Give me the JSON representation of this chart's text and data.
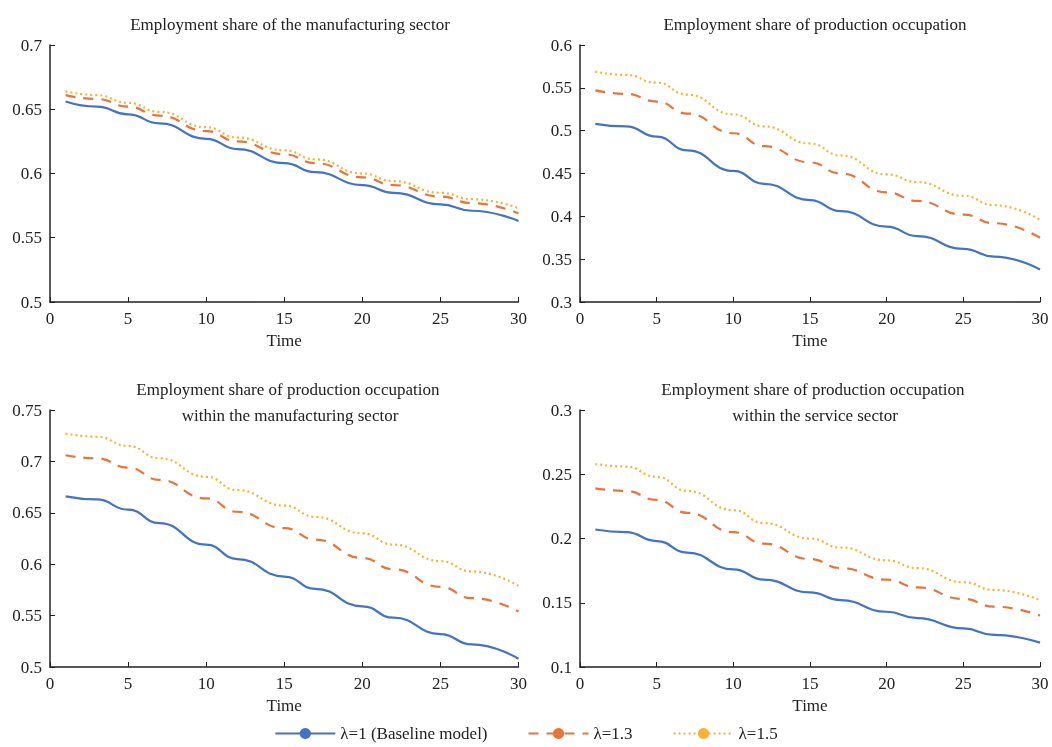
{
  "chart_data": [
    {
      "type": "line",
      "title": "Employment share of the manufacturing sector",
      "xlabel": "Time",
      "x": [
        1,
        3,
        5,
        7,
        10,
        12,
        15,
        17,
        20,
        22,
        25,
        27,
        30
      ],
      "xlim": [
        0,
        30
      ],
      "xticks": [
        0,
        5,
        10,
        15,
        20,
        25,
        30
      ],
      "ylim": [
        0.5,
        0.7
      ],
      "yticks": [
        0.5,
        0.55,
        0.6,
        0.65,
        0.7
      ],
      "grid": false,
      "legend": false,
      "marker": "none",
      "series": [
        {
          "color": "#4472c4",
          "line_style": "solid",
          "values": [
            0.656,
            0.652,
            0.646,
            0.639,
            0.627,
            0.619,
            0.608,
            0.601,
            0.591,
            0.585,
            0.576,
            0.571,
            0.563
          ]
        },
        {
          "color": "#e8743b",
          "line_style": "dashed",
          "values": [
            0.661,
            0.658,
            0.652,
            0.645,
            0.633,
            0.625,
            0.615,
            0.608,
            0.597,
            0.591,
            0.582,
            0.577,
            0.569
          ]
        },
        {
          "color": "#f9b233",
          "line_style": "dotted",
          "values": [
            0.664,
            0.661,
            0.655,
            0.648,
            0.636,
            0.628,
            0.618,
            0.611,
            0.6,
            0.594,
            0.585,
            0.58,
            0.573
          ]
        }
      ]
    },
    {
      "type": "line",
      "title": "Employment share of production occupation",
      "xlabel": "Time",
      "x": [
        1,
        3,
        5,
        7,
        10,
        12,
        15,
        17,
        20,
        22,
        25,
        27,
        30
      ],
      "xlim": [
        0,
        30
      ],
      "xticks": [
        0,
        5,
        10,
        15,
        20,
        25,
        30
      ],
      "ylim": [
        0.3,
        0.6
      ],
      "yticks": [
        0.3,
        0.35,
        0.4,
        0.45,
        0.5,
        0.55,
        0.6
      ],
      "grid": false,
      "legend": false,
      "marker": "none",
      "series": [
        {
          "color": "#4472c4",
          "line_style": "solid",
          "values": [
            0.508,
            0.505,
            0.493,
            0.477,
            0.453,
            0.438,
            0.419,
            0.406,
            0.388,
            0.377,
            0.362,
            0.353,
            0.338
          ]
        },
        {
          "color": "#e8743b",
          "line_style": "dashed",
          "values": [
            0.547,
            0.543,
            0.534,
            0.52,
            0.497,
            0.482,
            0.463,
            0.45,
            0.428,
            0.418,
            0.402,
            0.392,
            0.375
          ]
        },
        {
          "color": "#f9b233",
          "line_style": "dotted",
          "values": [
            0.569,
            0.565,
            0.556,
            0.542,
            0.519,
            0.505,
            0.485,
            0.471,
            0.449,
            0.44,
            0.424,
            0.413,
            0.396
          ]
        }
      ]
    },
    {
      "type": "line",
      "title": "Employment share of production occupation within the manufacturing sector",
      "xlabel": "Time",
      "x": [
        1,
        3,
        5,
        7,
        10,
        12,
        15,
        17,
        20,
        22,
        25,
        27,
        30
      ],
      "xlim": [
        0,
        30
      ],
      "xticks": [
        0,
        5,
        10,
        15,
        20,
        25,
        30
      ],
      "ylim": [
        0.5,
        0.75
      ],
      "yticks": [
        0.5,
        0.55,
        0.6,
        0.65,
        0.7,
        0.75
      ],
      "grid": false,
      "legend": false,
      "marker": "none",
      "series": [
        {
          "color": "#4472c4",
          "line_style": "solid",
          "values": [
            0.666,
            0.663,
            0.653,
            0.64,
            0.619,
            0.605,
            0.588,
            0.576,
            0.559,
            0.548,
            0.532,
            0.522,
            0.508
          ]
        },
        {
          "color": "#e8743b",
          "line_style": "dashed",
          "values": [
            0.706,
            0.703,
            0.694,
            0.682,
            0.664,
            0.651,
            0.635,
            0.624,
            0.606,
            0.595,
            0.578,
            0.567,
            0.554
          ]
        },
        {
          "color": "#f9b233",
          "line_style": "dotted",
          "values": [
            0.727,
            0.724,
            0.715,
            0.703,
            0.685,
            0.672,
            0.657,
            0.646,
            0.63,
            0.619,
            0.603,
            0.593,
            0.579
          ]
        }
      ]
    },
    {
      "type": "line",
      "title": "Employment share of production occupation within the service sector",
      "xlabel": "Time",
      "x": [
        1,
        3,
        5,
        7,
        10,
        12,
        15,
        17,
        20,
        22,
        25,
        27,
        30
      ],
      "xlim": [
        0,
        30
      ],
      "xticks": [
        0,
        5,
        10,
        15,
        20,
        25,
        30
      ],
      "ylim": [
        0.1,
        0.3
      ],
      "yticks": [
        0.1,
        0.15,
        0.2,
        0.25,
        0.3
      ],
      "grid": false,
      "legend": "bottom",
      "marker": "none",
      "series": [
        {
          "name": "λ=1 (Baseline model)",
          "color": "#4472c4",
          "line_style": "solid",
          "values": [
            0.207,
            0.205,
            0.198,
            0.189,
            0.176,
            0.168,
            0.158,
            0.152,
            0.143,
            0.138,
            0.13,
            0.125,
            0.119
          ]
        },
        {
          "name": "λ=1.3",
          "color": "#e8743b",
          "line_style": "dashed",
          "values": [
            0.239,
            0.237,
            0.23,
            0.22,
            0.205,
            0.196,
            0.184,
            0.177,
            0.168,
            0.162,
            0.153,
            0.147,
            0.14
          ]
        },
        {
          "name": "λ=1.5",
          "color": "#f9b233",
          "line_style": "dotted",
          "values": [
            0.258,
            0.256,
            0.248,
            0.237,
            0.222,
            0.212,
            0.2,
            0.193,
            0.183,
            0.177,
            0.166,
            0.16,
            0.152
          ]
        }
      ]
    }
  ]
}
